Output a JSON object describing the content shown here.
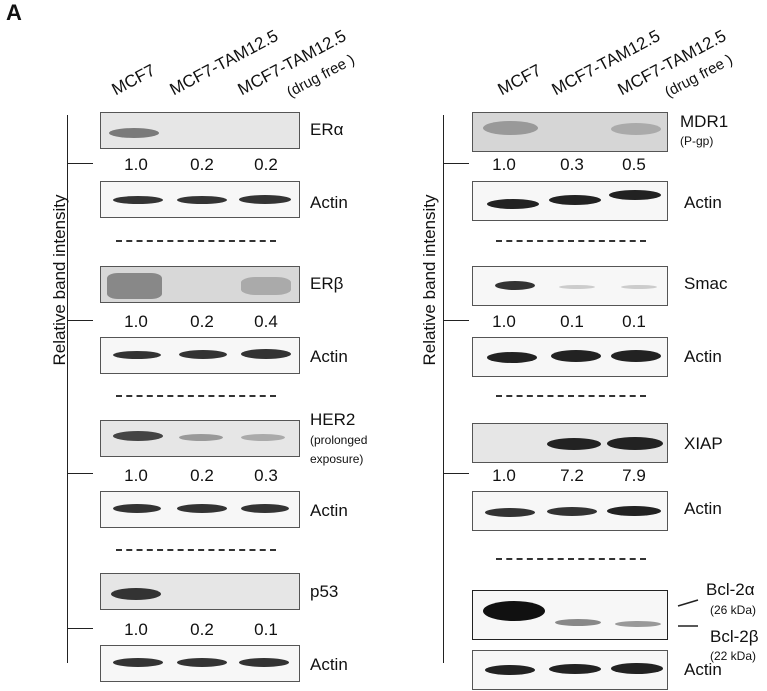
{
  "figure": {
    "panel_letter": "A",
    "y_axis_label": "Relative band intensity",
    "lane_labels": [
      "MCF7",
      "MCF7-TAM12.5",
      "MCF7-TAM12.5"
    ],
    "lane_sublabel": "(drug free )"
  },
  "left_column": {
    "blots": [
      {
        "protein": "ERα",
        "values": [
          "1.0",
          "0.2",
          "0.2"
        ],
        "control": "Actin"
      },
      {
        "protein": "ERβ",
        "values": [
          "1.0",
          "0.2",
          "0.4"
        ],
        "control": "Actin"
      },
      {
        "protein": "HER2",
        "note1": "(prolonged",
        "note2": "exposure)",
        "values": [
          "1.0",
          "0.2",
          "0.3"
        ],
        "control": "Actin"
      },
      {
        "protein": "p53",
        "values": [
          "1.0",
          "0.2",
          "0.1"
        ],
        "control": "Actin"
      }
    ]
  },
  "right_column": {
    "blots": [
      {
        "protein": "MDR1",
        "note1": "(P-gp)",
        "values": [
          "1.0",
          "0.3",
          "0.5"
        ],
        "control": "Actin"
      },
      {
        "protein": "Smac",
        "values": [
          "1.0",
          "0.1",
          "0.1"
        ],
        "control": "Actin"
      },
      {
        "protein": "XIAP",
        "values": [
          "1.0",
          "7.2",
          "7.9"
        ],
        "control": "Actin"
      },
      {
        "protein_a": "Bcl-2α",
        "note_a": "(26 kDa)",
        "protein_b": "Bcl-2β",
        "note_b": "(22 kDa)",
        "control": "Actin"
      }
    ]
  }
}
